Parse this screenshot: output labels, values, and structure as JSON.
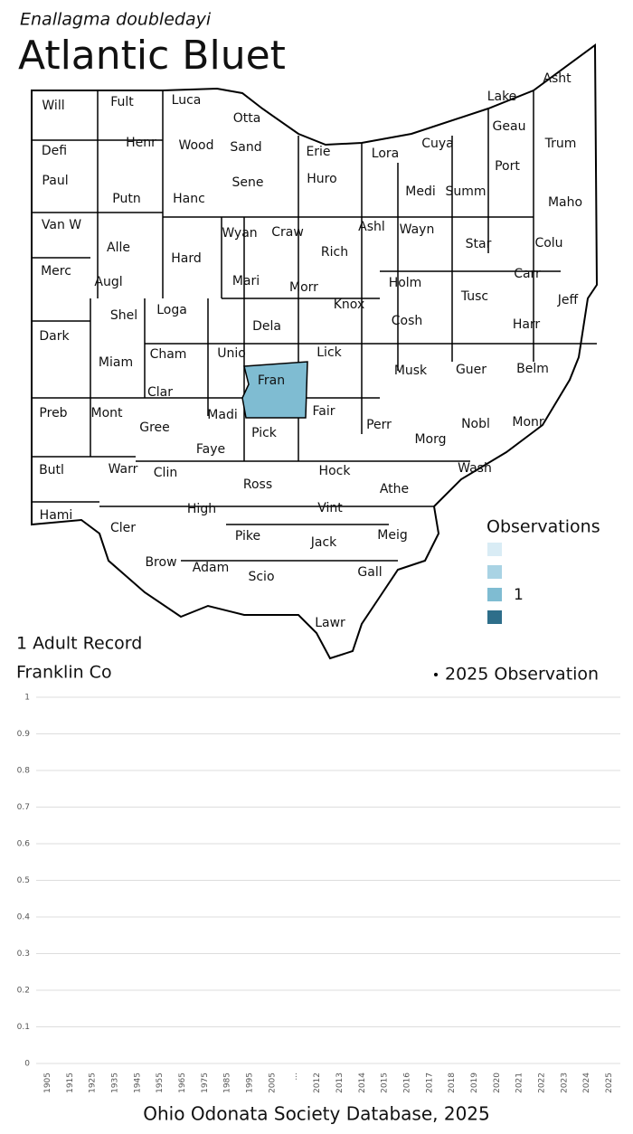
{
  "header": {
    "subtitle": "Enallagma doubledayi",
    "title": "Atlantic Bluet"
  },
  "map": {
    "legend_title": "Observations",
    "legend": [
      {
        "color": "#d9ecf5",
        "label": null
      },
      {
        "color": "#a9d3e4",
        "label": null
      },
      {
        "color": "#7fbcd2",
        "label": 1
      },
      {
        "color": "#2e6e8a",
        "label": null
      }
    ],
    "counties": [
      {
        "name": "Will"
      },
      {
        "name": "Fult"
      },
      {
        "name": "Luca"
      },
      {
        "name": "Otta"
      },
      {
        "name": "Lake"
      },
      {
        "name": "Asht"
      },
      {
        "name": "Defi"
      },
      {
        "name": "Henr"
      },
      {
        "name": "Wood"
      },
      {
        "name": "Sand"
      },
      {
        "name": "Erie"
      },
      {
        "name": "Lora"
      },
      {
        "name": "Cuya"
      },
      {
        "name": "Geau"
      },
      {
        "name": "Trum"
      },
      {
        "name": "Paul"
      },
      {
        "name": "Putn"
      },
      {
        "name": "Hanc"
      },
      {
        "name": "Sene"
      },
      {
        "name": "Huro"
      },
      {
        "name": "Medi"
      },
      {
        "name": "Summ"
      },
      {
        "name": "Port"
      },
      {
        "name": "Maho"
      },
      {
        "name": "Van W"
      },
      {
        "name": "Alle"
      },
      {
        "name": "Wyan"
      },
      {
        "name": "Craw"
      },
      {
        "name": "Ashl"
      },
      {
        "name": "Wayn"
      },
      {
        "name": "Star"
      },
      {
        "name": "Colu"
      },
      {
        "name": "Rich"
      },
      {
        "name": "Merc"
      },
      {
        "name": "Augl"
      },
      {
        "name": "Hard"
      },
      {
        "name": "Mari"
      },
      {
        "name": "Morr"
      },
      {
        "name": "Holm"
      },
      {
        "name": "Carr"
      },
      {
        "name": "Tusc"
      },
      {
        "name": "Jeff"
      },
      {
        "name": "Knox"
      },
      {
        "name": "Shel"
      },
      {
        "name": "Loga"
      },
      {
        "name": "Dela"
      },
      {
        "name": "Cosh"
      },
      {
        "name": "Harr"
      },
      {
        "name": "Dark"
      },
      {
        "name": "Miam"
      },
      {
        "name": "Cham"
      },
      {
        "name": "Unio"
      },
      {
        "name": "Lick"
      },
      {
        "name": "Musk"
      },
      {
        "name": "Guer"
      },
      {
        "name": "Belm"
      },
      {
        "name": "Clar"
      },
      {
        "name": "Fran",
        "observations": 1
      },
      {
        "name": "Fair"
      },
      {
        "name": "Perr"
      },
      {
        "name": "Madi"
      },
      {
        "name": "Nobl"
      },
      {
        "name": "Monr"
      },
      {
        "name": "Preb"
      },
      {
        "name": "Mont"
      },
      {
        "name": "Gree"
      },
      {
        "name": "Pick"
      },
      {
        "name": "Morg"
      },
      {
        "name": "Faye"
      },
      {
        "name": "Butl"
      },
      {
        "name": "Warr"
      },
      {
        "name": "Clin"
      },
      {
        "name": "Hock"
      },
      {
        "name": "Wash"
      },
      {
        "name": "Ross"
      },
      {
        "name": "Athe"
      },
      {
        "name": "Hami"
      },
      {
        "name": "Cler"
      },
      {
        "name": "High"
      },
      {
        "name": "Vint"
      },
      {
        "name": "Meig"
      },
      {
        "name": "Pike"
      },
      {
        "name": "Jack"
      },
      {
        "name": "Brow"
      },
      {
        "name": "Adam"
      },
      {
        "name": "Scio"
      },
      {
        "name": "Gall"
      },
      {
        "name": "Lawr"
      }
    ]
  },
  "chart_data": {
    "type": "scatter",
    "title": "1 Adult Record",
    "subtitle": "Franklin Co",
    "categories": [
      "1905",
      "1915",
      "1925",
      "1935",
      "1945",
      "1955",
      "1965",
      "1975",
      "1985",
      "1995",
      "2005",
      "...",
      "2012",
      "2013",
      "2014",
      "2015",
      "2016",
      "2017",
      "2018",
      "2019",
      "2020",
      "2021",
      "2022",
      "2023",
      "2024",
      "2025"
    ],
    "series": [
      {
        "name": "2025 Observation",
        "color": "#000000",
        "values": [
          null,
          null,
          null,
          null,
          null,
          null,
          null,
          null,
          null,
          null,
          null,
          null,
          null,
          null,
          null,
          null,
          null,
          null,
          null,
          null,
          null,
          null,
          null,
          null,
          null,
          null
        ]
      }
    ],
    "ylim": [
      0,
      1
    ],
    "yticks": [
      0,
      0.1,
      0.2,
      0.3,
      0.4,
      0.5,
      0.6,
      0.7,
      0.8,
      0.9,
      1
    ],
    "grid": true,
    "source": "Ohio Odonata Society Database, 2025"
  }
}
